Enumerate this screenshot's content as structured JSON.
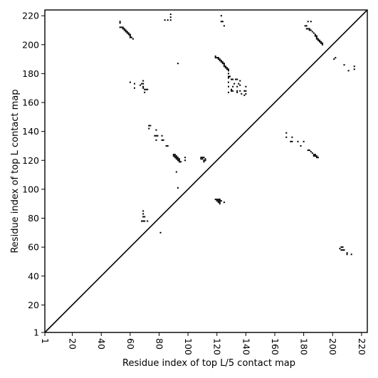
{
  "chart_data": {
    "type": "scatter",
    "title": "",
    "xlabel": "Residue index of top L/5 contact map",
    "ylabel": "Residue index of top L contact map",
    "xlim": [
      1,
      224
    ],
    "ylim": [
      1,
      224
    ],
    "x_ticks": [
      "1",
      "20",
      "40",
      "60",
      "80",
      "100",
      "120",
      "140",
      "160",
      "180",
      "200",
      "220"
    ],
    "y_ticks": [
      "1",
      "20",
      "40",
      "60",
      "80",
      "100",
      "120",
      "140",
      "160",
      "180",
      "200",
      "220"
    ],
    "diagonal_line": [
      [
        1,
        1
      ],
      [
        224,
        224
      ]
    ],
    "grid": false,
    "series": [
      {
        "name": "",
        "points": [
          [
            53,
            216
          ],
          [
            53,
            215
          ],
          [
            53,
            212
          ],
          [
            54,
            212
          ],
          [
            55,
            212
          ],
          [
            55,
            211
          ],
          [
            56,
            211
          ],
          [
            56,
            210
          ],
          [
            57,
            210
          ],
          [
            57,
            209
          ],
          [
            58,
            209
          ],
          [
            58,
            208
          ],
          [
            59,
            208
          ],
          [
            59,
            207
          ],
          [
            60,
            207
          ],
          [
            60,
            206
          ],
          [
            60,
            205
          ],
          [
            61,
            205
          ],
          [
            62,
            204
          ],
          [
            84,
            217
          ],
          [
            86,
            217
          ],
          [
            88,
            221
          ],
          [
            88,
            219
          ],
          [
            88,
            217
          ],
          [
            123,
            220
          ],
          [
            123,
            216
          ],
          [
            124,
            216
          ],
          [
            125,
            213
          ],
          [
            181,
            213
          ],
          [
            182,
            213
          ],
          [
            183,
            216
          ],
          [
            185,
            216
          ],
          [
            182,
            211
          ],
          [
            183,
            211
          ],
          [
            184,
            211
          ],
          [
            184,
            210
          ],
          [
            185,
            210
          ],
          [
            186,
            209
          ],
          [
            187,
            208
          ],
          [
            188,
            207
          ],
          [
            188,
            206
          ],
          [
            189,
            206
          ],
          [
            189,
            205
          ],
          [
            189,
            204
          ],
          [
            190,
            204
          ],
          [
            190,
            203
          ],
          [
            191,
            203
          ],
          [
            191,
            202
          ],
          [
            192,
            202
          ],
          [
            192,
            201
          ],
          [
            193,
            201
          ],
          [
            193,
            200
          ],
          [
            119,
            192
          ],
          [
            119,
            191
          ],
          [
            120,
            191
          ],
          [
            121,
            191
          ],
          [
            121,
            190
          ],
          [
            122,
            190
          ],
          [
            122,
            189
          ],
          [
            123,
            189
          ],
          [
            123,
            188
          ],
          [
            124,
            188
          ],
          [
            124,
            187
          ],
          [
            125,
            187
          ],
          [
            125,
            186
          ],
          [
            125,
            185
          ],
          [
            126,
            185
          ],
          [
            126,
            184
          ],
          [
            127,
            184
          ],
          [
            127,
            183
          ],
          [
            128,
            183
          ],
          [
            128,
            182
          ],
          [
            128,
            180
          ],
          [
            128,
            178
          ],
          [
            129,
            178
          ],
          [
            128,
            177
          ],
          [
            130,
            176
          ],
          [
            131,
            176
          ],
          [
            133,
            176
          ],
          [
            134,
            176
          ],
          [
            136,
            175
          ],
          [
            128,
            174
          ],
          [
            132,
            173
          ],
          [
            135,
            173
          ],
          [
            136,
            172
          ],
          [
            128,
            171
          ],
          [
            131,
            171
          ],
          [
            134,
            171
          ],
          [
            140,
            171
          ],
          [
            130,
            169
          ],
          [
            130,
            168
          ],
          [
            131,
            168
          ],
          [
            134,
            168
          ],
          [
            136,
            168
          ],
          [
            139,
            168
          ],
          [
            140,
            168
          ],
          [
            128,
            167
          ],
          [
            134,
            167
          ],
          [
            137,
            166
          ],
          [
            140,
            166
          ],
          [
            139,
            165
          ],
          [
            93,
            187
          ],
          [
            60,
            174
          ],
          [
            63,
            173
          ],
          [
            63,
            170
          ],
          [
            67,
            172
          ],
          [
            68,
            173
          ],
          [
            69,
            175
          ],
          [
            69,
            173
          ],
          [
            69,
            171
          ],
          [
            69,
            170
          ],
          [
            70,
            169
          ],
          [
            71,
            169
          ],
          [
            72,
            169
          ],
          [
            70,
            167
          ],
          [
            73,
            144
          ],
          [
            74,
            144
          ],
          [
            73,
            142
          ],
          [
            78,
            141
          ],
          [
            77,
            137
          ],
          [
            78,
            137
          ],
          [
            79,
            137
          ],
          [
            82,
            137
          ],
          [
            78,
            134
          ],
          [
            82,
            134
          ],
          [
            83,
            134
          ],
          [
            85,
            130
          ],
          [
            86,
            130
          ],
          [
            90,
            124
          ],
          [
            91,
            124
          ],
          [
            90,
            123
          ],
          [
            91,
            123
          ],
          [
            92,
            123
          ],
          [
            91,
            122
          ],
          [
            92,
            122
          ],
          [
            93,
            122
          ],
          [
            92,
            121
          ],
          [
            93,
            121
          ],
          [
            94,
            121
          ],
          [
            93,
            120
          ],
          [
            94,
            120
          ],
          [
            94,
            119
          ],
          [
            95,
            119
          ],
          [
            98,
            122
          ],
          [
            98,
            120
          ],
          [
            109,
            122
          ],
          [
            110,
            122
          ],
          [
            111,
            122
          ],
          [
            109,
            121
          ],
          [
            110,
            121
          ],
          [
            112,
            121
          ],
          [
            111,
            120
          ],
          [
            112,
            120
          ],
          [
            111,
            119
          ],
          [
            92,
            112
          ],
          [
            93,
            101
          ],
          [
            119,
            93
          ],
          [
            120,
            93
          ],
          [
            121,
            93
          ],
          [
            122,
            93
          ],
          [
            120,
            92
          ],
          [
            121,
            92
          ],
          [
            122,
            92
          ],
          [
            123,
            92
          ],
          [
            121,
            91
          ],
          [
            122,
            91
          ],
          [
            125,
            91
          ],
          [
            122,
            90
          ],
          [
            69,
            85
          ],
          [
            69,
            83
          ],
          [
            69,
            81
          ],
          [
            70,
            81
          ],
          [
            68,
            78
          ],
          [
            69,
            78
          ],
          [
            70,
            78
          ],
          [
            72,
            78
          ],
          [
            81,
            70
          ],
          [
            168,
            139
          ],
          [
            168,
            136
          ],
          [
            172,
            136
          ],
          [
            171,
            133
          ],
          [
            172,
            133
          ],
          [
            176,
            133
          ],
          [
            180,
            133
          ],
          [
            178,
            130
          ],
          [
            183,
            127
          ],
          [
            184,
            127
          ],
          [
            185,
            126
          ],
          [
            186,
            125
          ],
          [
            187,
            124
          ],
          [
            188,
            124
          ],
          [
            187,
            123
          ],
          [
            188,
            123
          ],
          [
            189,
            123
          ],
          [
            189,
            122
          ],
          [
            190,
            122
          ],
          [
            201,
            190
          ],
          [
            202,
            191
          ],
          [
            208,
            186
          ],
          [
            211,
            182
          ],
          [
            215,
            185
          ],
          [
            215,
            183
          ],
          [
            206,
            60
          ],
          [
            207,
            60
          ],
          [
            205,
            59
          ],
          [
            206,
            58
          ],
          [
            207,
            58
          ],
          [
            208,
            58
          ],
          [
            210,
            56
          ],
          [
            210,
            55
          ],
          [
            213,
            55
          ]
        ]
      }
    ]
  }
}
